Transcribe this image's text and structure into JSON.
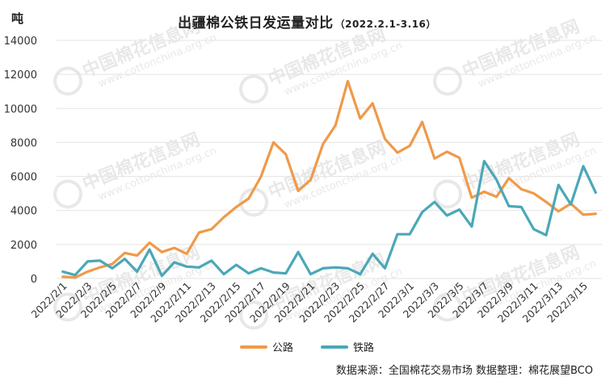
{
  "header": {
    "unit": "吨",
    "title": "出疆棉公铁日发运量对比",
    "subtitle": "（2022.2.1-3.16）"
  },
  "watermark": {
    "brand": "中国棉花信息网",
    "site": "www.cottonchina.org.cn"
  },
  "colors": {
    "road": "#ef9a4a",
    "rail": "#4aa8b7",
    "grid": "#e3e3e3",
    "axis_text": "#333333"
  },
  "footer": {
    "source": "数据来源：全国棉花交易市场  数据整理：棉花展望BCO"
  },
  "chart_data": {
    "type": "line",
    "title": "出疆棉公铁日发运量对比（2022.2.1-3.16）",
    "ylabel": "吨",
    "ylim": [
      0,
      14000
    ],
    "yticks": [
      0,
      2000,
      4000,
      6000,
      8000,
      10000,
      12000,
      14000
    ],
    "grid": true,
    "legend_position": "bottom",
    "x_tick_labels": [
      "2022/2/1",
      "2022/2/3",
      "2022/2/5",
      "2022/2/7",
      "2022/2/9",
      "2022/2/11",
      "2022/2/13",
      "2022/2/15",
      "2022/2/17",
      "2022/2/19",
      "2022/2/21",
      "2022/2/23",
      "2022/2/25",
      "2022/2/27",
      "2022/3/1",
      "2022/3/3",
      "2022/3/5",
      "2022/3/7",
      "2022/3/9",
      "2022/3/11",
      "2022/3/13",
      "2022/3/15"
    ],
    "x": [
      "2022/2/1",
      "2022/2/2",
      "2022/2/3",
      "2022/2/4",
      "2022/2/5",
      "2022/2/6",
      "2022/2/7",
      "2022/2/8",
      "2022/2/9",
      "2022/2/10",
      "2022/2/11",
      "2022/2/12",
      "2022/2/13",
      "2022/2/14",
      "2022/2/15",
      "2022/2/16",
      "2022/2/17",
      "2022/2/18",
      "2022/2/19",
      "2022/2/20",
      "2022/2/21",
      "2022/2/22",
      "2022/2/23",
      "2022/2/24",
      "2022/2/25",
      "2022/2/26",
      "2022/2/27",
      "2022/2/28",
      "2022/3/1",
      "2022/3/2",
      "2022/3/3",
      "2022/3/4",
      "2022/3/5",
      "2022/3/6",
      "2022/3/7",
      "2022/3/8",
      "2022/3/9",
      "2022/3/10",
      "2022/3/11",
      "2022/3/12",
      "2022/3/13",
      "2022/3/14",
      "2022/3/15",
      "2022/3/16"
    ],
    "series": [
      {
        "name": "公路",
        "color": "#ef9a4a",
        "values": [
          100,
          50,
          400,
          650,
          850,
          1500,
          1350,
          2100,
          1550,
          1800,
          1450,
          2700,
          2900,
          3600,
          4200,
          4700,
          6000,
          8000,
          7300,
          5150,
          5800,
          7900,
          9000,
          11600,
          9400,
          10300,
          8200,
          7400,
          7800,
          9200,
          7050,
          7450,
          7100,
          4750,
          5100,
          4800,
          5900,
          5250,
          5000,
          4500,
          3950,
          4400,
          3750,
          3800
        ]
      },
      {
        "name": "铁路",
        "color": "#4aa8b7",
        "values": [
          400,
          200,
          1000,
          1050,
          600,
          1150,
          400,
          1700,
          150,
          950,
          700,
          650,
          1050,
          250,
          800,
          300,
          600,
          350,
          300,
          1550,
          250,
          600,
          650,
          600,
          250,
          1450,
          600,
          2600,
          2600,
          3900,
          4500,
          3700,
          4050,
          3050,
          6900,
          5800,
          4250,
          4200,
          2900,
          2550,
          5500,
          4350,
          6600,
          5050
        ]
      }
    ]
  }
}
